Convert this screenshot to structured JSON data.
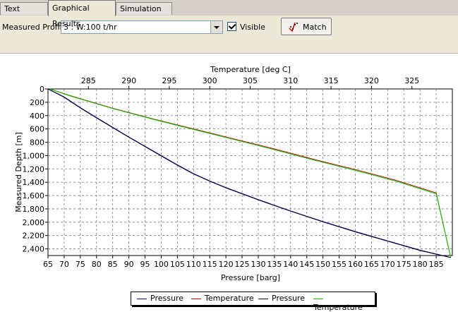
{
  "tabs": [
    {
      "label": "Text Results",
      "active": false
    },
    {
      "label": "Graphical Results",
      "active": true
    },
    {
      "label": "Simulation Log",
      "active": false
    }
  ],
  "toolbar": {
    "profile_label": "Measured Profile",
    "profile_value": "3 : W:100 t/hr",
    "visible_label": "Visible",
    "visible_checked": true,
    "match_label": "Match"
  },
  "chart_data": {
    "type": "line",
    "x_axis_bottom": {
      "label": "Pressure [barg]",
      "range": [
        65,
        190
      ],
      "ticks": [
        "65",
        "70",
        "75",
        "80",
        "85",
        "90",
        "95",
        "100",
        "105",
        "110",
        "115",
        "120",
        "125",
        "130",
        "135",
        "140",
        "145",
        "150",
        "155",
        "160",
        "165",
        "170",
        "175",
        "180",
        "185"
      ]
    },
    "x_axis_top": {
      "label": "Temperature [deg C]",
      "range": [
        280,
        330
      ],
      "ticks": [
        "285",
        "290",
        "295",
        "300",
        "305",
        "310",
        "315",
        "320",
        "325"
      ]
    },
    "y_axis": {
      "label": "Measured Depth [m]",
      "range": [
        0,
        2500
      ],
      "inverted": true,
      "ticks": [
        "0",
        "200",
        "400",
        "600",
        "800",
        "1,000",
        "1,200",
        "1,400",
        "1,600",
        "1,800",
        "2,000",
        "2,200",
        "2,400"
      ]
    },
    "grid": true,
    "legend_placement": "bottom",
    "series": [
      {
        "name": "Pressure",
        "axis": "bottom",
        "color": "#000080",
        "points": [
          [
            65,
            0
          ],
          [
            70,
            120
          ],
          [
            75,
            280
          ],
          [
            80,
            430
          ],
          [
            85,
            575
          ],
          [
            90,
            720
          ],
          [
            95,
            860
          ],
          [
            100,
            1000
          ],
          [
            105,
            1140
          ],
          [
            110,
            1270
          ],
          [
            115,
            1380
          ],
          [
            120,
            1480
          ],
          [
            130,
            1660
          ],
          [
            140,
            1830
          ],
          [
            150,
            1990
          ],
          [
            160,
            2140
          ],
          [
            170,
            2280
          ],
          [
            180,
            2420
          ],
          [
            189.5,
            2530
          ]
        ]
      },
      {
        "name": "Temperature",
        "axis": "top",
        "color": "#cc0000",
        "points": [
          [
            280.2,
            0
          ],
          [
            283,
            110
          ],
          [
            288,
            290
          ],
          [
            293,
            450
          ],
          [
            298,
            600
          ],
          [
            303,
            750
          ],
          [
            308,
            900
          ],
          [
            313,
            1060
          ],
          [
            318,
            1210
          ],
          [
            323,
            1370
          ],
          [
            328,
            1560
          ],
          [
            329.8,
            2530
          ]
        ]
      },
      {
        "name": "Pressure",
        "axis": "bottom",
        "color": "#000033",
        "points": [
          [
            65,
            0
          ],
          [
            70,
            125
          ],
          [
            75,
            285
          ],
          [
            80,
            435
          ],
          [
            85,
            580
          ],
          [
            90,
            725
          ],
          [
            95,
            865
          ],
          [
            100,
            1005
          ],
          [
            105,
            1145
          ],
          [
            110,
            1275
          ],
          [
            115,
            1385
          ],
          [
            120,
            1485
          ],
          [
            130,
            1665
          ],
          [
            140,
            1835
          ],
          [
            150,
            1995
          ],
          [
            160,
            2145
          ],
          [
            170,
            2285
          ],
          [
            180,
            2425
          ],
          [
            189.5,
            2530
          ]
        ]
      },
      {
        "name": "Temperature",
        "axis": "top",
        "color": "#00cc00",
        "points": [
          [
            280.2,
            0
          ],
          [
            283,
            115
          ],
          [
            288,
            295
          ],
          [
            293,
            455
          ],
          [
            298,
            608
          ],
          [
            303,
            760
          ],
          [
            308,
            912
          ],
          [
            313,
            1072
          ],
          [
            318,
            1222
          ],
          [
            323,
            1382
          ],
          [
            328,
            1575
          ],
          [
            329.8,
            2530
          ]
        ]
      }
    ]
  }
}
